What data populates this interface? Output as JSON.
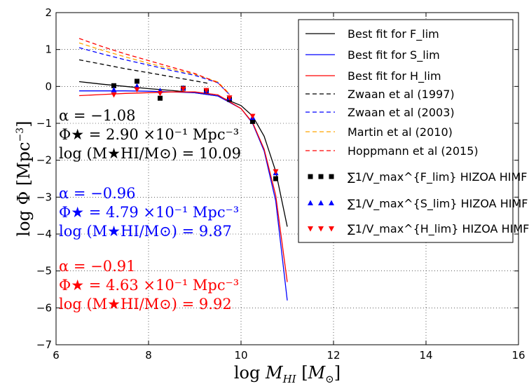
{
  "chart_data": {
    "type": "line",
    "xlabel": "log M_HI [M_⊙]",
    "ylabel": "log Φ [Mpc⁻³]",
    "xlim": [
      6,
      16
    ],
    "ylim": [
      -7,
      2
    ],
    "xticks": [
      "6",
      "8",
      "10",
      "12",
      "14",
      "16"
    ],
    "yticks": [
      "2",
      "1",
      "0",
      "−1",
      "−2",
      "−3",
      "−4",
      "−5",
      "−6",
      "−7"
    ],
    "grid": true,
    "legend_position": "top-right",
    "series": [
      {
        "name": "Best fit for F_lim",
        "style": "solid",
        "color": "#000000",
        "x": [
          6.5,
          7.0,
          7.5,
          8.0,
          8.5,
          9.0,
          9.5,
          10.0,
          10.25,
          10.5,
          10.75,
          11.0
        ],
        "y": [
          0.13,
          0.06,
          0.0,
          -0.06,
          -0.11,
          -0.17,
          -0.26,
          -0.52,
          -0.8,
          -1.35,
          -2.3,
          -3.8
        ]
      },
      {
        "name": "Best fit for S_lim",
        "style": "solid",
        "color": "#0000ff",
        "x": [
          6.5,
          7.0,
          7.5,
          8.0,
          8.5,
          9.0,
          9.5,
          10.0,
          10.25,
          10.5,
          10.75,
          11.0
        ],
        "y": [
          -0.12,
          -0.12,
          -0.12,
          -0.13,
          -0.15,
          -0.17,
          -0.26,
          -0.6,
          -1.0,
          -1.75,
          -3.1,
          -5.8
        ]
      },
      {
        "name": "Best fit for H_lim",
        "style": "solid",
        "color": "#ff0000",
        "x": [
          6.5,
          7.0,
          7.5,
          8.0,
          8.5,
          9.0,
          9.5,
          10.0,
          10.25,
          10.5,
          10.75,
          11.0
        ],
        "y": [
          -0.25,
          -0.22,
          -0.19,
          -0.17,
          -0.15,
          -0.15,
          -0.23,
          -0.6,
          -0.98,
          -1.7,
          -2.95,
          -5.3
        ]
      },
      {
        "name": "Zwaan et al (1997)",
        "style": "dashed",
        "color": "#000000",
        "x": [
          6.5,
          7.0,
          7.5,
          8.0,
          8.5,
          9.0,
          9.3
        ],
        "y": [
          0.72,
          0.6,
          0.48,
          0.37,
          0.26,
          0.15,
          0.08
        ]
      },
      {
        "name": "Zwaan et al (2003)",
        "style": "dashed",
        "color": "#0000ff",
        "x": [
          6.5,
          7.0,
          7.5,
          8.0,
          8.5,
          9.0,
          9.5,
          9.75
        ],
        "y": [
          1.05,
          0.88,
          0.72,
          0.58,
          0.43,
          0.3,
          0.1,
          -0.22
        ]
      },
      {
        "name": "Martin et al (2010)",
        "style": "dashed",
        "color": "#ffa500",
        "x": [
          6.5,
          7.0,
          7.5,
          8.0,
          8.5,
          9.0,
          9.5,
          9.75
        ],
        "y": [
          1.18,
          0.98,
          0.8,
          0.63,
          0.47,
          0.33,
          0.12,
          -0.2
        ]
      },
      {
        "name": "Hoppmann et al (2015)",
        "style": "dashed",
        "color": "#ff0000",
        "x": [
          6.5,
          7.0,
          7.5,
          8.0,
          8.5,
          9.0,
          9.5,
          9.75
        ],
        "y": [
          1.3,
          1.08,
          0.88,
          0.7,
          0.52,
          0.35,
          0.1,
          -0.22
        ]
      },
      {
        "name": "∑1/V_max^{F_lim} HIZOA HIMF",
        "style": "marker",
        "marker": "square",
        "color": "#000000",
        "x": [
          7.25,
          7.75,
          8.25,
          8.75,
          9.25,
          9.75,
          10.25,
          10.75
        ],
        "y": [
          0.02,
          0.14,
          -0.32,
          -0.05,
          -0.12,
          -0.35,
          -0.95,
          -2.5
        ]
      },
      {
        "name": "∑1/V_max^{S_lim} HIZOA HIMF",
        "style": "marker",
        "marker": "triangle-up",
        "color": "#0000ff",
        "x": [
          7.25,
          7.75,
          8.25,
          8.75,
          9.25,
          9.75,
          10.25,
          10.75
        ],
        "y": [
          -0.1,
          0.0,
          -0.12,
          -0.05,
          -0.12,
          -0.32,
          -0.85,
          -2.35
        ]
      },
      {
        "name": "∑1/V_max^{H_lim} HIZOA HIMF",
        "style": "marker",
        "marker": "triangle-down",
        "color": "#ff0000",
        "x": [
          7.25,
          7.75,
          8.25,
          8.75,
          9.25,
          9.75,
          10.25,
          10.75
        ],
        "y": [
          -0.22,
          -0.08,
          -0.18,
          -0.06,
          -0.1,
          -0.3,
          -0.8,
          -2.3
        ]
      }
    ],
    "annotations": [
      {
        "color": "#000000",
        "lines": [
          "α  = −1.08",
          "Φ★  = 2.90 ×10⁻¹ Mpc⁻³",
          "log (M★HI/M⊙)  = 10.09"
        ]
      },
      {
        "color": "#0000ff",
        "lines": [
          "α  = −0.96",
          "Φ★  = 4.79 ×10⁻¹ Mpc⁻³",
          "log (M★HI/M⊙)  = 9.87"
        ]
      },
      {
        "color": "#ff0000",
        "lines": [
          "α  = −0.91",
          "Φ★  = 4.63 ×10⁻¹ Mpc⁻³",
          "log (M★HI/M⊙)  = 9.92"
        ]
      }
    ]
  }
}
